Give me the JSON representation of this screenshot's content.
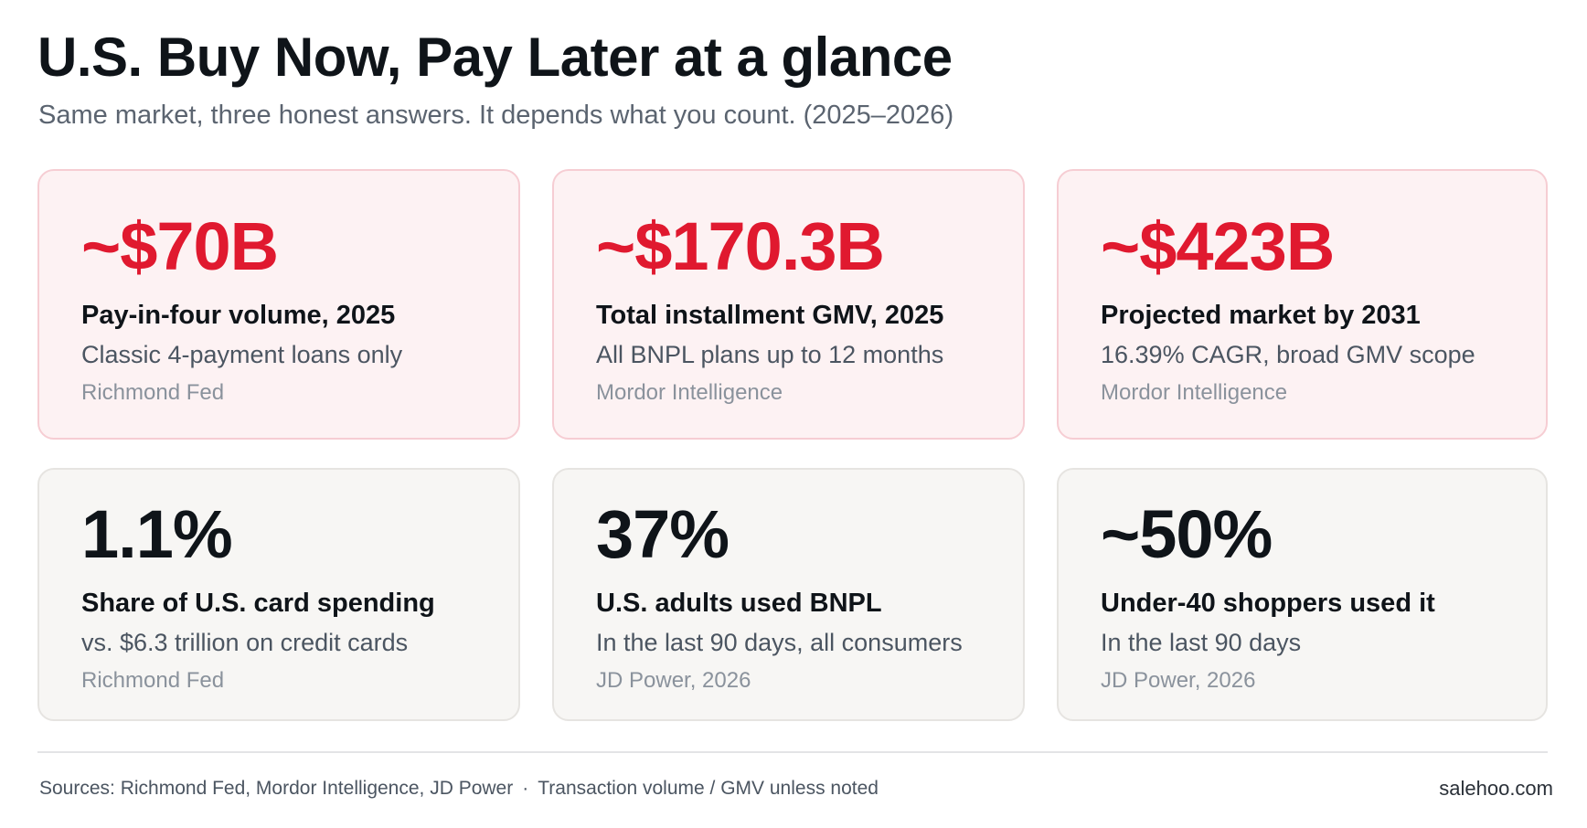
{
  "header": {
    "title": "U.S. Buy Now, Pay Later at a glance",
    "subtitle": "Same market, three honest answers. It depends what you count. (2025–2026)"
  },
  "cards": [
    {
      "value": "~$70B",
      "label": "Pay-in-four volume, 2025",
      "desc": "Classic 4-payment loans only",
      "source": "Richmond Fed",
      "style": "red"
    },
    {
      "value": "~$170.3B",
      "label": "Total installment GMV, 2025",
      "desc": "All BNPL plans up to 12 months",
      "source": "Mordor Intelligence",
      "style": "red"
    },
    {
      "value": "~$423B",
      "label": "Projected market by 2031",
      "desc": "16.39% CAGR, broad GMV scope",
      "source": "Mordor Intelligence",
      "style": "red"
    },
    {
      "value": "1.1%",
      "label": "Share of U.S. card spending",
      "desc": "vs. $6.3 trillion on credit cards",
      "source": "Richmond Fed",
      "style": "gray"
    },
    {
      "value": "37%",
      "label": "U.S. adults used BNPL",
      "desc": "In the last 90 days, all consumers",
      "source": "JD Power, 2026",
      "style": "gray"
    },
    {
      "value": "~50%",
      "label": "Under-40 shoppers used it",
      "desc": "In the last 90 days",
      "source": "JD Power, 2026",
      "style": "gray"
    }
  ],
  "footer": {
    "sources": "Sources: Richmond Fed, Mordor Intelligence, JD Power",
    "separator": "·",
    "note": "Transaction volume / GMV unless noted",
    "brand": "salehoo.com"
  },
  "colors": {
    "accent_red": "#e0192f",
    "red_card_bg": "#fdf2f3",
    "red_card_border": "#f6cdd3",
    "gray_card_bg": "#f7f6f4",
    "gray_card_border": "#e6e4e1",
    "text_dark": "#0f1419",
    "text_muted": "#5b6470"
  }
}
